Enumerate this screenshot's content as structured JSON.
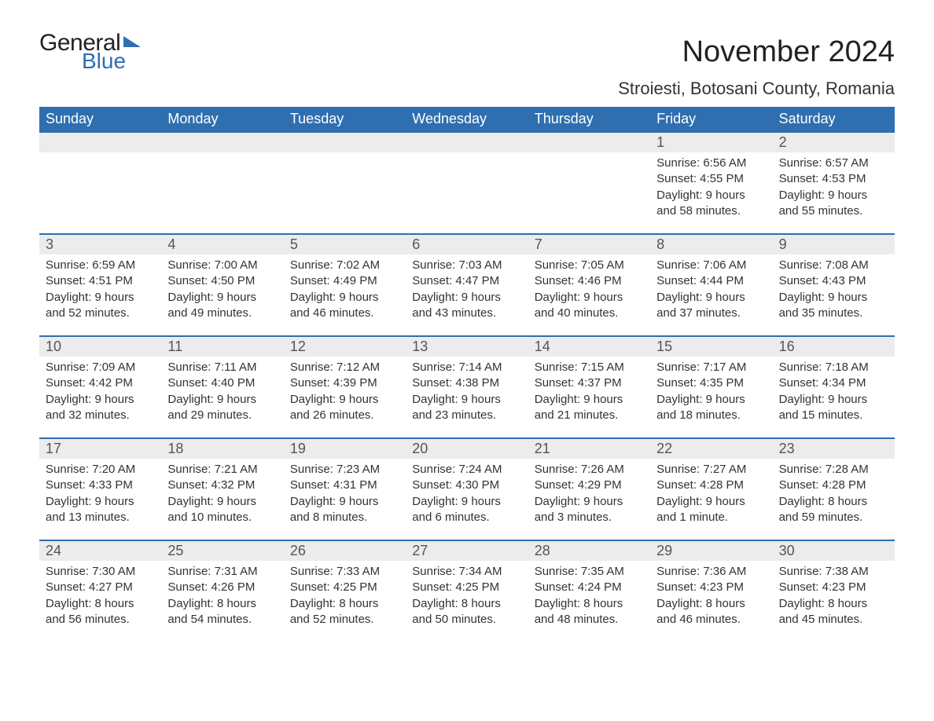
{
  "logo": {
    "word1": "General",
    "word2": "Blue"
  },
  "title": "November 2024",
  "location": "Stroiesti, Botosani County, Romania",
  "colors": {
    "header_bg": "#2f6fb0",
    "header_text": "#ffffff",
    "daynum_bg": "#ececec",
    "rule": "#2f6fb0",
    "body_text": "#333333",
    "page_bg": "#ffffff"
  },
  "dow": [
    "Sunday",
    "Monday",
    "Tuesday",
    "Wednesday",
    "Thursday",
    "Friday",
    "Saturday"
  ],
  "weeks": [
    [
      null,
      null,
      null,
      null,
      null,
      {
        "n": "1",
        "sr": "Sunrise: 6:56 AM",
        "ss": "Sunset: 4:55 PM",
        "dl": "Daylight: 9 hours and 58 minutes."
      },
      {
        "n": "2",
        "sr": "Sunrise: 6:57 AM",
        "ss": "Sunset: 4:53 PM",
        "dl": "Daylight: 9 hours and 55 minutes."
      }
    ],
    [
      {
        "n": "3",
        "sr": "Sunrise: 6:59 AM",
        "ss": "Sunset: 4:51 PM",
        "dl": "Daylight: 9 hours and 52 minutes."
      },
      {
        "n": "4",
        "sr": "Sunrise: 7:00 AM",
        "ss": "Sunset: 4:50 PM",
        "dl": "Daylight: 9 hours and 49 minutes."
      },
      {
        "n": "5",
        "sr": "Sunrise: 7:02 AM",
        "ss": "Sunset: 4:49 PM",
        "dl": "Daylight: 9 hours and 46 minutes."
      },
      {
        "n": "6",
        "sr": "Sunrise: 7:03 AM",
        "ss": "Sunset: 4:47 PM",
        "dl": "Daylight: 9 hours and 43 minutes."
      },
      {
        "n": "7",
        "sr": "Sunrise: 7:05 AM",
        "ss": "Sunset: 4:46 PM",
        "dl": "Daylight: 9 hours and 40 minutes."
      },
      {
        "n": "8",
        "sr": "Sunrise: 7:06 AM",
        "ss": "Sunset: 4:44 PM",
        "dl": "Daylight: 9 hours and 37 minutes."
      },
      {
        "n": "9",
        "sr": "Sunrise: 7:08 AM",
        "ss": "Sunset: 4:43 PM",
        "dl": "Daylight: 9 hours and 35 minutes."
      }
    ],
    [
      {
        "n": "10",
        "sr": "Sunrise: 7:09 AM",
        "ss": "Sunset: 4:42 PM",
        "dl": "Daylight: 9 hours and 32 minutes."
      },
      {
        "n": "11",
        "sr": "Sunrise: 7:11 AM",
        "ss": "Sunset: 4:40 PM",
        "dl": "Daylight: 9 hours and 29 minutes."
      },
      {
        "n": "12",
        "sr": "Sunrise: 7:12 AM",
        "ss": "Sunset: 4:39 PM",
        "dl": "Daylight: 9 hours and 26 minutes."
      },
      {
        "n": "13",
        "sr": "Sunrise: 7:14 AM",
        "ss": "Sunset: 4:38 PM",
        "dl": "Daylight: 9 hours and 23 minutes."
      },
      {
        "n": "14",
        "sr": "Sunrise: 7:15 AM",
        "ss": "Sunset: 4:37 PM",
        "dl": "Daylight: 9 hours and 21 minutes."
      },
      {
        "n": "15",
        "sr": "Sunrise: 7:17 AM",
        "ss": "Sunset: 4:35 PM",
        "dl": "Daylight: 9 hours and 18 minutes."
      },
      {
        "n": "16",
        "sr": "Sunrise: 7:18 AM",
        "ss": "Sunset: 4:34 PM",
        "dl": "Daylight: 9 hours and 15 minutes."
      }
    ],
    [
      {
        "n": "17",
        "sr": "Sunrise: 7:20 AM",
        "ss": "Sunset: 4:33 PM",
        "dl": "Daylight: 9 hours and 13 minutes."
      },
      {
        "n": "18",
        "sr": "Sunrise: 7:21 AM",
        "ss": "Sunset: 4:32 PM",
        "dl": "Daylight: 9 hours and 10 minutes."
      },
      {
        "n": "19",
        "sr": "Sunrise: 7:23 AM",
        "ss": "Sunset: 4:31 PM",
        "dl": "Daylight: 9 hours and 8 minutes."
      },
      {
        "n": "20",
        "sr": "Sunrise: 7:24 AM",
        "ss": "Sunset: 4:30 PM",
        "dl": "Daylight: 9 hours and 6 minutes."
      },
      {
        "n": "21",
        "sr": "Sunrise: 7:26 AM",
        "ss": "Sunset: 4:29 PM",
        "dl": "Daylight: 9 hours and 3 minutes."
      },
      {
        "n": "22",
        "sr": "Sunrise: 7:27 AM",
        "ss": "Sunset: 4:28 PM",
        "dl": "Daylight: 9 hours and 1 minute."
      },
      {
        "n": "23",
        "sr": "Sunrise: 7:28 AM",
        "ss": "Sunset: 4:28 PM",
        "dl": "Daylight: 8 hours and 59 minutes."
      }
    ],
    [
      {
        "n": "24",
        "sr": "Sunrise: 7:30 AM",
        "ss": "Sunset: 4:27 PM",
        "dl": "Daylight: 8 hours and 56 minutes."
      },
      {
        "n": "25",
        "sr": "Sunrise: 7:31 AM",
        "ss": "Sunset: 4:26 PM",
        "dl": "Daylight: 8 hours and 54 minutes."
      },
      {
        "n": "26",
        "sr": "Sunrise: 7:33 AM",
        "ss": "Sunset: 4:25 PM",
        "dl": "Daylight: 8 hours and 52 minutes."
      },
      {
        "n": "27",
        "sr": "Sunrise: 7:34 AM",
        "ss": "Sunset: 4:25 PM",
        "dl": "Daylight: 8 hours and 50 minutes."
      },
      {
        "n": "28",
        "sr": "Sunrise: 7:35 AM",
        "ss": "Sunset: 4:24 PM",
        "dl": "Daylight: 8 hours and 48 minutes."
      },
      {
        "n": "29",
        "sr": "Sunrise: 7:36 AM",
        "ss": "Sunset: 4:23 PM",
        "dl": "Daylight: 8 hours and 46 minutes."
      },
      {
        "n": "30",
        "sr": "Sunrise: 7:38 AM",
        "ss": "Sunset: 4:23 PM",
        "dl": "Daylight: 8 hours and 45 minutes."
      }
    ]
  ]
}
